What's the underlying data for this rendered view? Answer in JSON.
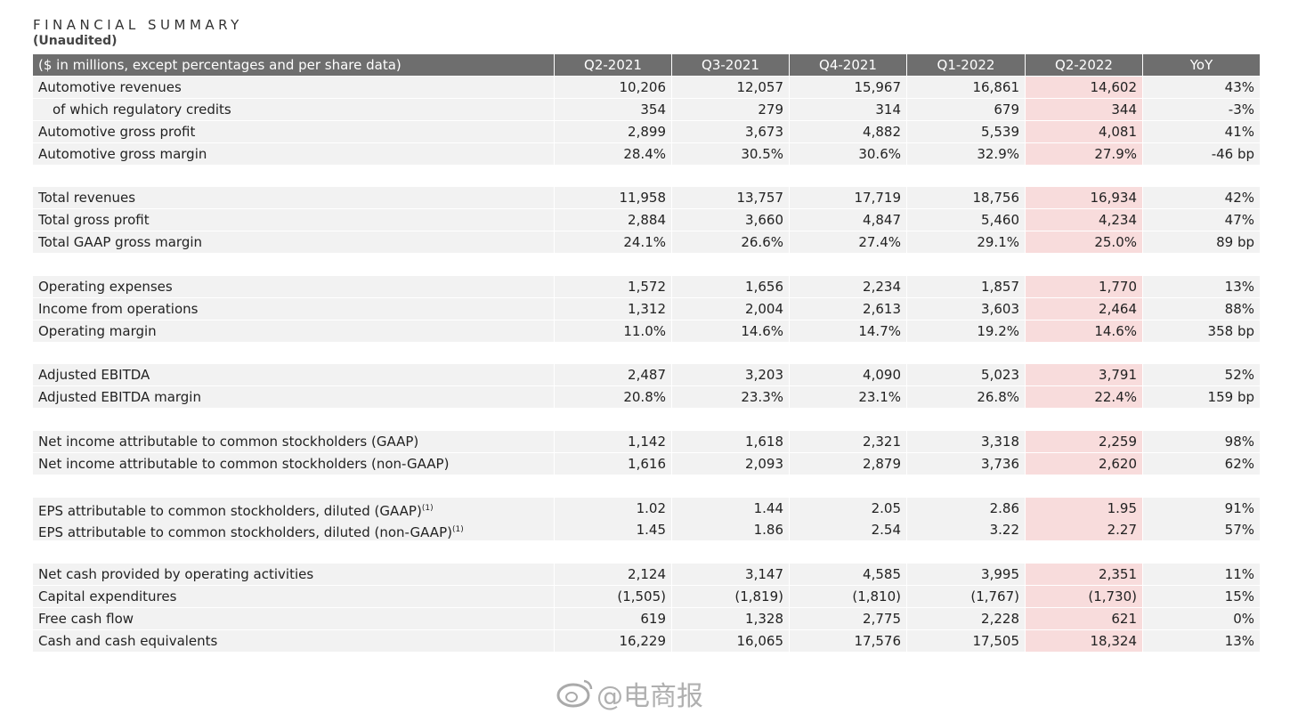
{
  "header": {
    "title": "FINANCIAL SUMMARY",
    "subtitle": "(Unaudited)"
  },
  "table": {
    "columns": [
      "($ in millions, except percentages and per share data)",
      "Q2-2021",
      "Q3-2021",
      "Q4-2021",
      "Q1-2022",
      "Q2-2022",
      "YoY"
    ],
    "groups": [
      [
        {
          "label": "Automotive revenues",
          "values": [
            "10,206",
            "12,057",
            "15,967",
            "16,861",
            "14,602",
            "43%"
          ]
        },
        {
          "label": "of which regulatory credits",
          "indent": true,
          "values": [
            "354",
            "279",
            "314",
            "679",
            "344",
            "-3%"
          ]
        },
        {
          "label": "Automotive gross profit",
          "values": [
            "2,899",
            "3,673",
            "4,882",
            "5,539",
            "4,081",
            "41%"
          ]
        },
        {
          "label": "Automotive gross margin",
          "values": [
            "28.4%",
            "30.5%",
            "30.6%",
            "32.9%",
            "27.9%",
            "-46 bp"
          ]
        }
      ],
      [
        {
          "label": "Total revenues",
          "values": [
            "11,958",
            "13,757",
            "17,719",
            "18,756",
            "16,934",
            "42%"
          ]
        },
        {
          "label": "Total gross profit",
          "values": [
            "2,884",
            "3,660",
            "4,847",
            "5,460",
            "4,234",
            "47%"
          ]
        },
        {
          "label": "Total GAAP gross margin",
          "values": [
            "24.1%",
            "26.6%",
            "27.4%",
            "29.1%",
            "25.0%",
            "89 bp"
          ]
        }
      ],
      [
        {
          "label": "Operating expenses",
          "values": [
            "1,572",
            "1,656",
            "2,234",
            "1,857",
            "1,770",
            "13%"
          ]
        },
        {
          "label": "Income from operations",
          "values": [
            "1,312",
            "2,004",
            "2,613",
            "3,603",
            "2,464",
            "88%"
          ]
        },
        {
          "label": "Operating margin",
          "values": [
            "11.0%",
            "14.6%",
            "14.7%",
            "19.2%",
            "14.6%",
            "358 bp"
          ]
        }
      ],
      [
        {
          "label": "Adjusted EBITDA",
          "values": [
            "2,487",
            "3,203",
            "4,090",
            "5,023",
            "3,791",
            "52%"
          ]
        },
        {
          "label": "Adjusted EBITDA margin",
          "values": [
            "20.8%",
            "23.3%",
            "23.1%",
            "26.8%",
            "22.4%",
            "159 bp"
          ]
        }
      ],
      [
        {
          "label": "Net income attributable to common stockholders (GAAP)",
          "values": [
            "1,142",
            "1,618",
            "2,321",
            "3,318",
            "2,259",
            "98%"
          ]
        },
        {
          "label": "Net income attributable to common stockholders (non-GAAP)",
          "values": [
            "1,616",
            "2,093",
            "2,879",
            "3,736",
            "2,620",
            "62%"
          ]
        }
      ],
      [
        {
          "label": "EPS attributable to common stockholders, diluted (GAAP)",
          "note": "(1)",
          "values": [
            "1.02",
            "1.44",
            "2.05",
            "2.86",
            "1.95",
            "91%"
          ]
        },
        {
          "label": "EPS attributable to common stockholders, diluted (non-GAAP)",
          "note": "(1)",
          "values": [
            "1.45",
            "1.86",
            "2.54",
            "3.22",
            "2.27",
            "57%"
          ]
        }
      ],
      [
        {
          "label": "Net cash provided by operating activities",
          "values": [
            "2,124",
            "3,147",
            "4,585",
            "3,995",
            "2,351",
            "11%"
          ]
        },
        {
          "label": "Capital expenditures",
          "values": [
            "(1,505)",
            "(1,819)",
            "(1,810)",
            "(1,767)",
            "(1,730)",
            "15%"
          ]
        },
        {
          "label": "Free cash flow",
          "values": [
            "619",
            "1,328",
            "2,775",
            "2,228",
            "621",
            "0%"
          ]
        },
        {
          "label": "Cash and cash equivalents",
          "values": [
            "16,229",
            "16,065",
            "17,576",
            "17,505",
            "18,324",
            "13%"
          ]
        }
      ]
    ]
  },
  "watermark": "@电商报"
}
